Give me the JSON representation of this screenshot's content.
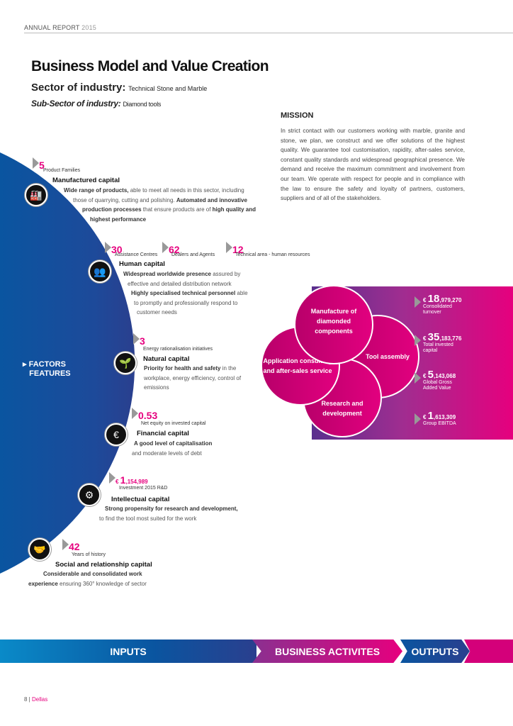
{
  "header": {
    "label": "ANNUAL REPORT",
    "year": "2015"
  },
  "title": "Business Model and Value Creation",
  "sector": {
    "label": "Sector of industry:",
    "value": "Technical Stone and Marble"
  },
  "subsector": {
    "label": "Sub-Sector of industry:",
    "value": "Diamond tools"
  },
  "mission": {
    "title": "MISSION",
    "text": "In strict contact with our customers working with marble, granite and stone, we plan, we construct and we offer solutions of the highest quality. We guarantee tool customisation, rapidity, after-sales service, constant quality standards and widespread geographical presence. We demand and receive the maximum commitment and involvement from our team. We operate with respect for people and in compliance with the law to ensure the safety and loyalty of partners, customers, suppliers and of all of the stakeholders."
  },
  "factors": {
    "line1": "FACTORS",
    "line2": "FEATURES"
  },
  "capitals": {
    "manufactured": {
      "num": "5",
      "cap": "Product Families",
      "title": "Manufactured capital",
      "d1b": "Wide range of products,",
      "d1": " able to meet all needs in this sector, including",
      "d2": "those of quarrying, cutting and polishing. ",
      "d2b": "Automated and innovative",
      "d3b": "production processes",
      "d3": " that ensure products are of ",
      "d3b2": "high quality and",
      "d4b": "highest performance",
      "icon": "factory-icon"
    },
    "human": {
      "stats": [
        {
          "num": "30",
          "cap": "Assistance Centres"
        },
        {
          "num": "62",
          "cap": "Dealers and Agents"
        },
        {
          "num": "12",
          "cap": "Technical area - human resources"
        }
      ],
      "title": "Human capital",
      "d1b": "Widespread worldwide presence",
      "d1": " assured by",
      "d2": "effective and detailed distribution network",
      "d3b": "Highly specialised technical personnel",
      "d3": " able",
      "d4": "to promptly and professionally respond to",
      "d5": "customer needs",
      "icon": "people-network-icon"
    },
    "natural": {
      "num": "3",
      "cap": "Energy rationalisation initiatives",
      "title": "Natural capital",
      "d1b": "Priority for health and safety",
      "d1": " in the",
      "d2": "workplace, energy efficiency, control of",
      "d3": "emissions",
      "icon": "plant-hand-icon"
    },
    "financial": {
      "num": "0.53",
      "cap": "Net equity on invested capital",
      "title": "Financial capital",
      "d1b": "A good level of capitalisation",
      "d2": "and moderate levels of debt",
      "icon": "euro-icon"
    },
    "intellectual": {
      "cur": "€ ",
      "num": "1",
      "rest": ",154,989",
      "cap": "Investment 2015 R&D",
      "title": "Intellectual capital",
      "d1b": "Strong propensity for research and development,",
      "d2": "to find the tool most suited for the work",
      "icon": "head-gears-icon"
    },
    "social": {
      "num": "42",
      "cap": "Years of history",
      "title": "Social and relationship capital",
      "d1b": "Considerable and consolidated work",
      "d2b": "experience",
      "d2": " ensuring 360° knowledge of sector",
      "icon": "handshake-icon"
    }
  },
  "activities": [
    "Manufacture of diamonded components",
    "Tool assembly",
    "Application consulting and after-sales service",
    "Research and development"
  ],
  "outputs": [
    {
      "cur": "€ ",
      "big": "18",
      "rest": ",979,270",
      "l1": "Consolidated",
      "l2": "turnover"
    },
    {
      "cur": "€ ",
      "big": "35",
      "rest": ",183,776",
      "l1": "Total invested",
      "l2": "capital"
    },
    {
      "cur": "€ ",
      "big": "5",
      "rest": ",143,068",
      "l1": "Global Gross",
      "l2": "Added Value"
    },
    {
      "cur": "€ ",
      "big": "1",
      "rest": ",613,309",
      "l1": "Group EBITDA",
      "l2": ""
    }
  ],
  "banner": {
    "inputs": "INPUTS",
    "activities": "BUSINESS ACTIVITES",
    "outputs": "OUTPUTS"
  },
  "footer": {
    "page": "8",
    "brand": "Dellas"
  },
  "colors": {
    "accent": "#e6007e",
    "blue": "#0a55a0",
    "purple": "#5a2f8e"
  }
}
